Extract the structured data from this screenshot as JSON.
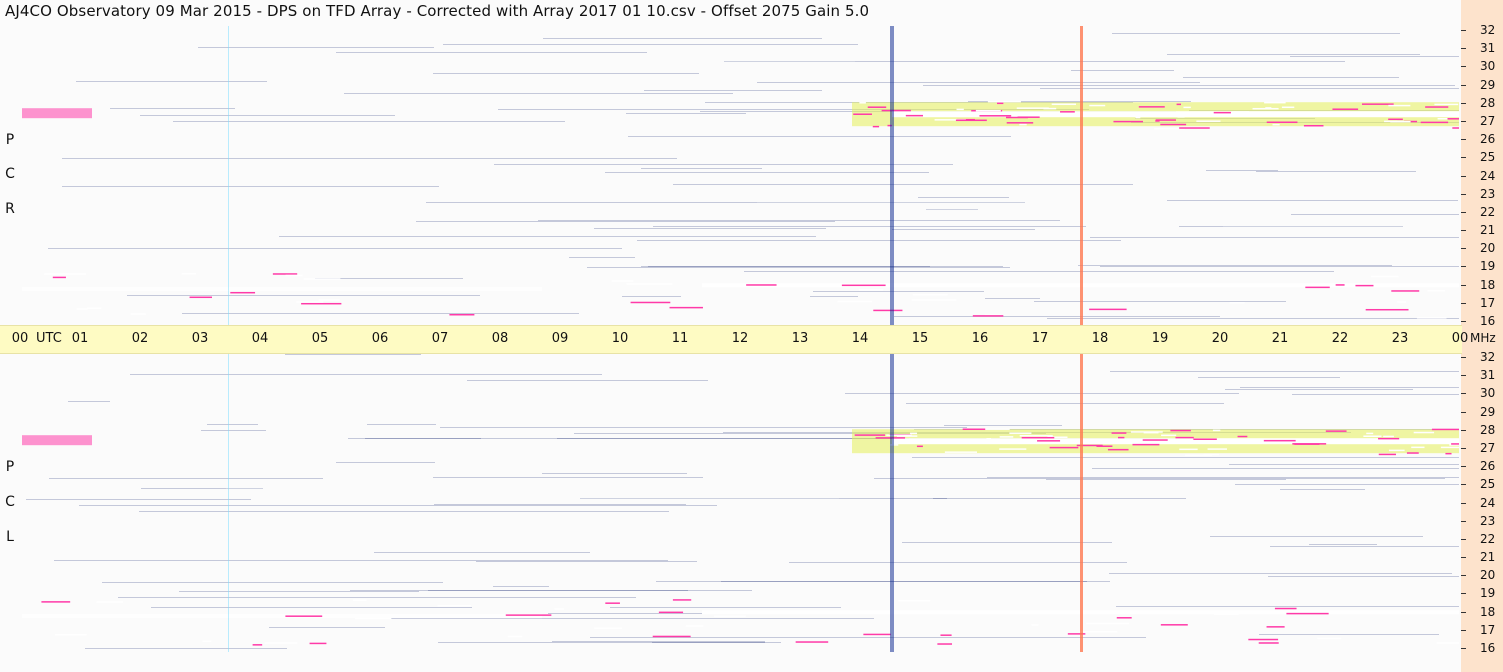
{
  "title": "AJ4CO Observatory  09 Mar 2015  -  DPS on TFD Array  -  Corrected with Array 2017 01 10.csv  -  Offset 2075  Gain 5.0",
  "panels": [
    {
      "id": "rcp",
      "label_letters": [
        "R",
        "C",
        "P"
      ]
    },
    {
      "id": "lcp",
      "label_letters": [
        "L",
        "C",
        "P"
      ]
    }
  ],
  "time_axis": {
    "hours": [
      "00",
      "01",
      "02",
      "03",
      "04",
      "05",
      "06",
      "07",
      "08",
      "09",
      "10",
      "11",
      "12",
      "13",
      "14",
      "15",
      "16",
      "17",
      "18",
      "19",
      "20",
      "21",
      "22",
      "23",
      "00"
    ],
    "utc_label": "UTC",
    "unit_label": "MHz"
  },
  "freq_axis": {
    "labels": [
      "32",
      "31",
      "30",
      "29",
      "28",
      "27",
      "26",
      "25",
      "24",
      "23",
      "22",
      "21",
      "20",
      "19",
      "18",
      "17",
      "16"
    ]
  },
  "colors": {
    "deep": "#00052b",
    "dark_blue": "#0a1a8a",
    "blue": "#1e5ad8",
    "cyan_blue": "#1e8ee6",
    "cyan": "#19bde6",
    "green": "#4fdc9c",
    "yellow": "#e6f05a",
    "magenta": "#ff3aa8",
    "white": "#ffffff",
    "axis_bg": "#fefbc3",
    "right_bg": "#fde3cc"
  },
  "chart_data": [
    {
      "type": "heatmap",
      "title": "AJ4CO Observatory  09 Mar 2015  -  DPS on TFD Array  -  Corrected with Array 2017 01 10.csv  -  Offset 2075  Gain 5.0",
      "panel": "R C P",
      "xlabel": "UTC",
      "ylabel": "MHz",
      "xlim": [
        0,
        24
      ],
      "ylim": [
        16,
        32
      ],
      "x_ticks": [
        "00",
        "01",
        "02",
        "03",
        "04",
        "05",
        "06",
        "07",
        "08",
        "09",
        "10",
        "11",
        "12",
        "13",
        "14",
        "15",
        "16",
        "17",
        "18",
        "19",
        "20",
        "21",
        "22",
        "23",
        "00"
      ],
      "y_ticks": [
        32,
        31,
        30,
        29,
        28,
        27,
        26,
        25,
        24,
        23,
        22,
        21,
        20,
        19,
        18,
        17,
        16
      ]
    },
    {
      "type": "heatmap",
      "panel": "L C P",
      "xlabel": "UTC",
      "ylabel": "MHz",
      "xlim": [
        0,
        24
      ],
      "ylim": [
        16,
        32
      ],
      "x_ticks": [
        "00",
        "01",
        "02",
        "03",
        "04",
        "05",
        "06",
        "07",
        "08",
        "09",
        "10",
        "11",
        "12",
        "13",
        "14",
        "15",
        "16",
        "17",
        "18",
        "19",
        "20",
        "21",
        "22",
        "23",
        "00"
      ],
      "y_ticks": [
        32,
        31,
        30,
        29,
        28,
        27,
        26,
        25,
        24,
        23,
        22,
        21,
        20,
        19,
        18,
        17,
        16
      ]
    }
  ]
}
